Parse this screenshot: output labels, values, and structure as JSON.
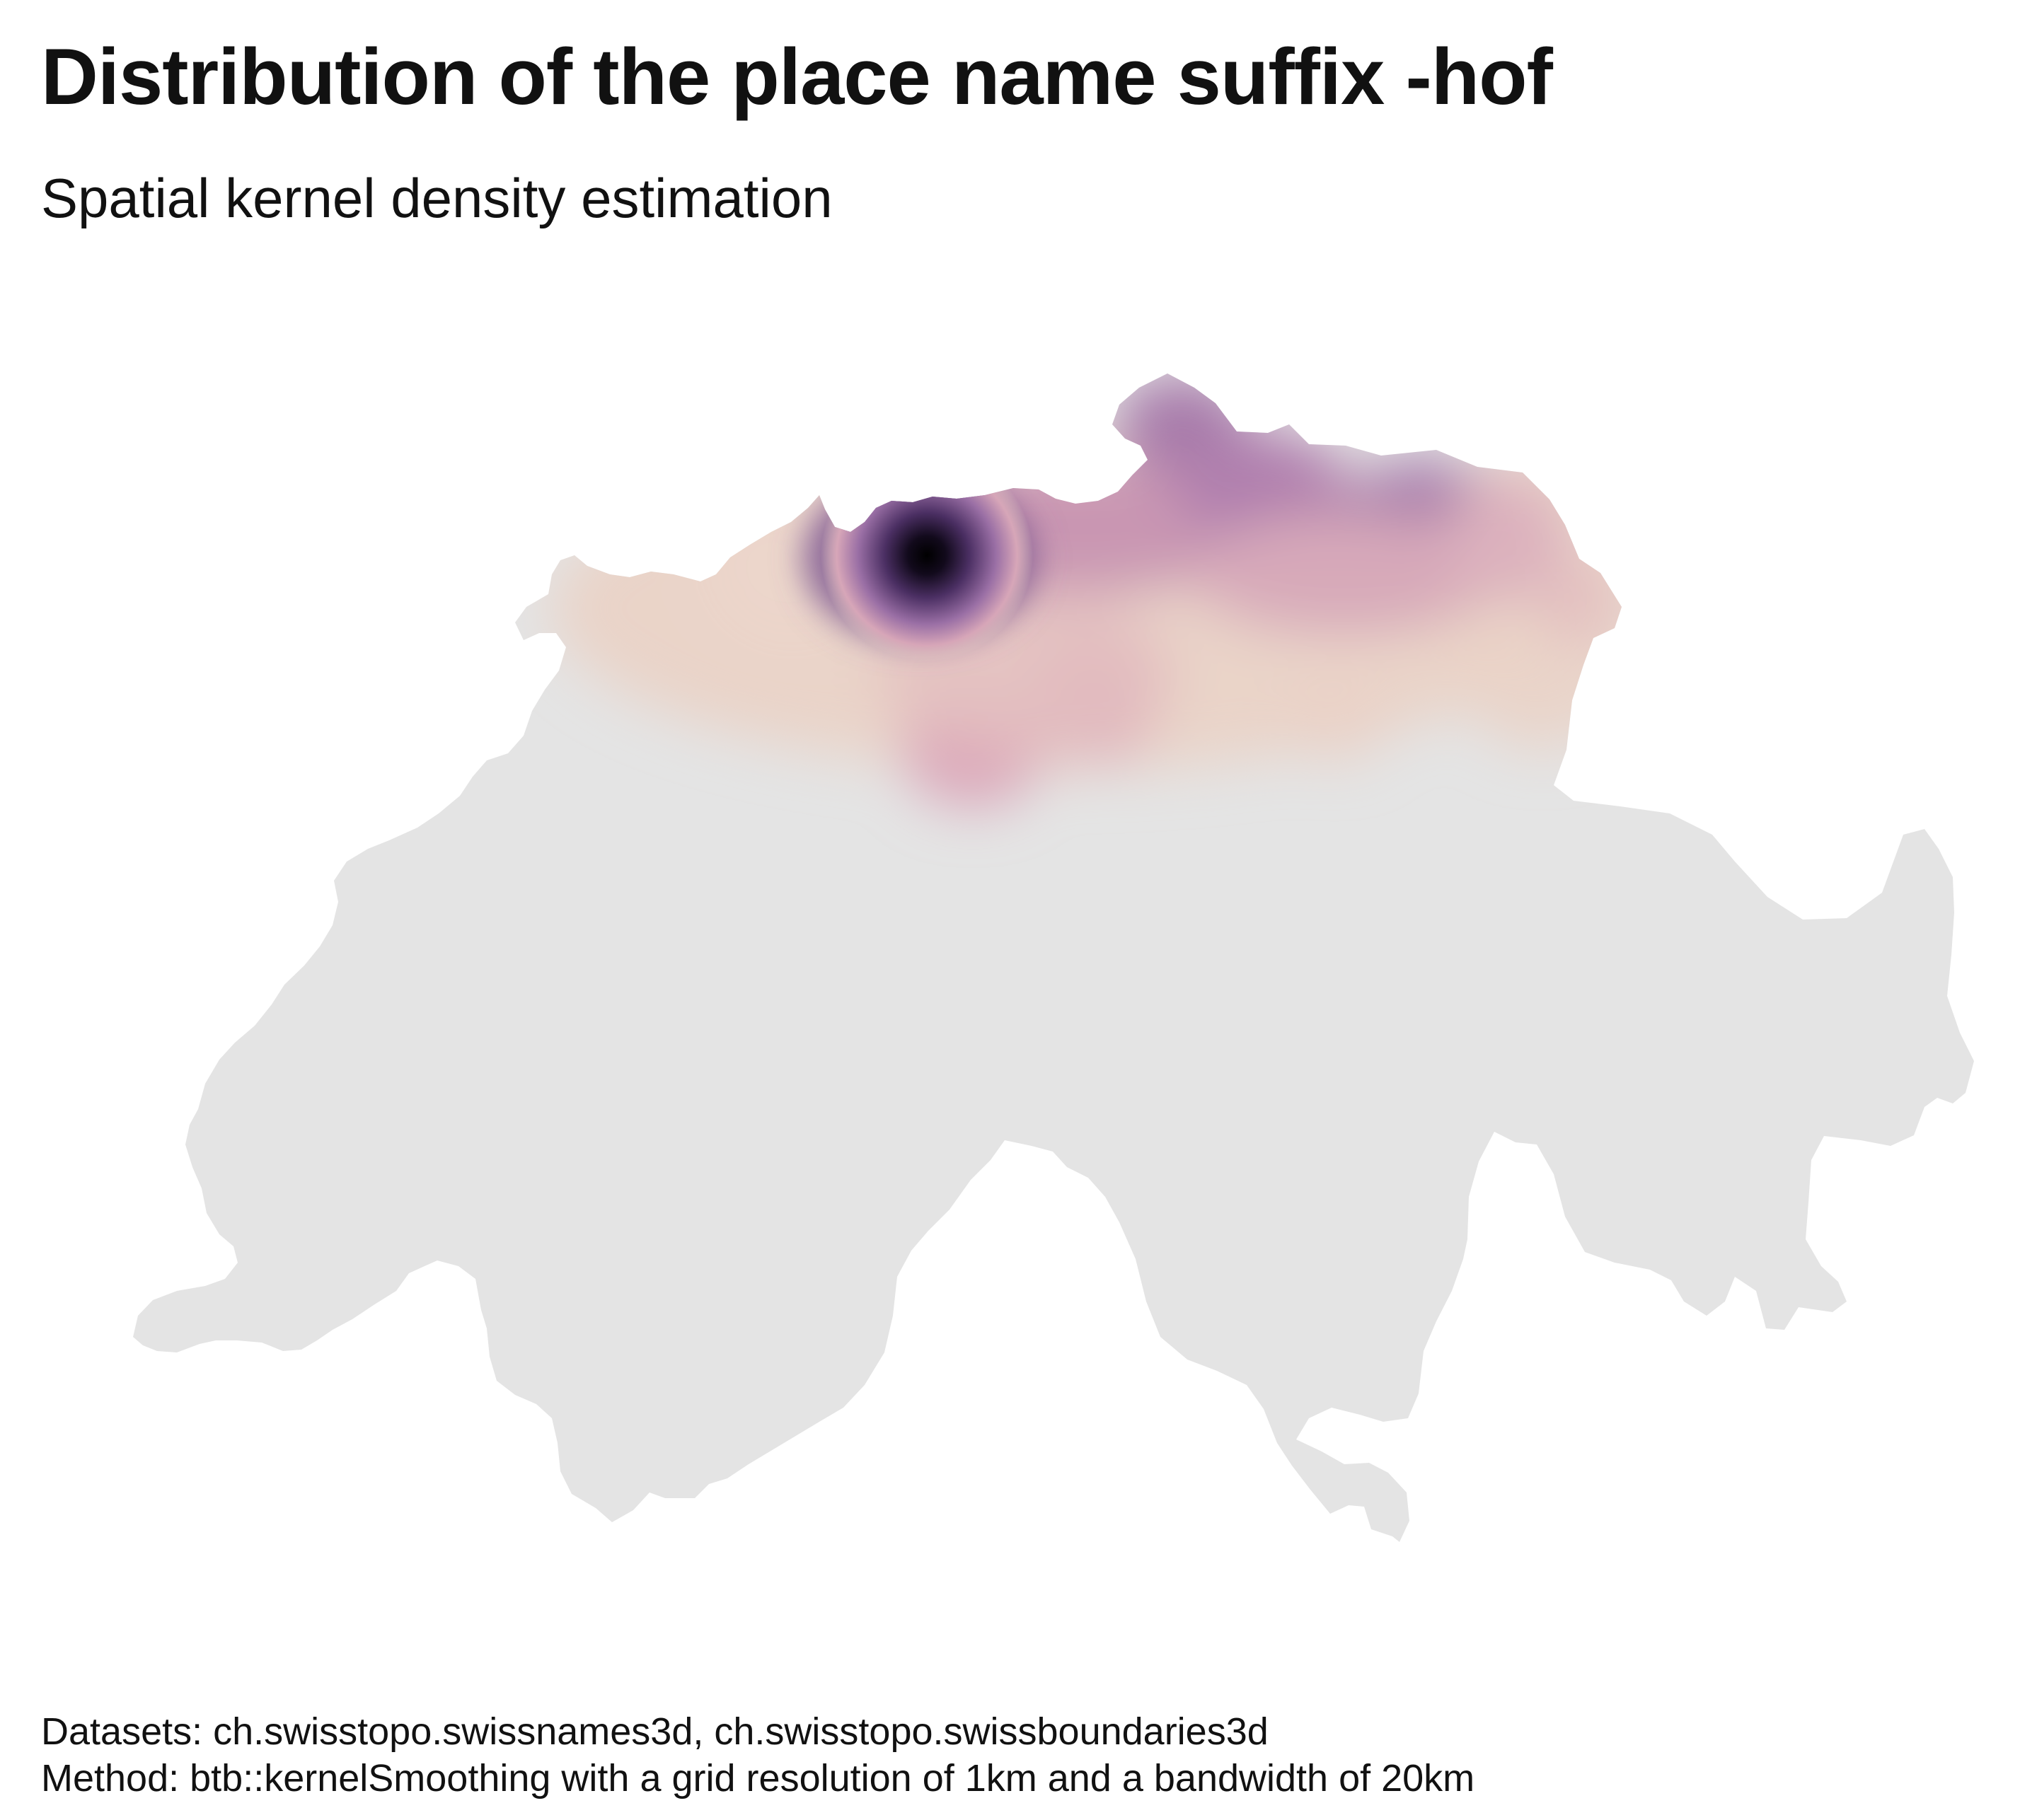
{
  "title": "Distribution of the place name suffix -hof",
  "subtitle": "Spatial kernel density estimation",
  "caption": {
    "datasets": "Datasets: ch.swisstopo.swissnames3d, ch.swisstopo.swissboundaries3d",
    "method": "Method: btb::kernelSmoothing with a grid resolution of 1km and a bandwidth of 20km"
  },
  "map": {
    "type": "kernel-density-heatmap",
    "region": "Switzerland",
    "grid": false,
    "legend": "none",
    "colors": {
      "background": "#ffffff",
      "zero_density": "#e4e4e4",
      "low": "#ecd4c8",
      "mid_low": "#e2b0bc",
      "mid": "#c58bb0",
      "mid_high": "#a073a8",
      "high": "#5a3a6e",
      "peak": "#0c0714"
    }
  }
}
